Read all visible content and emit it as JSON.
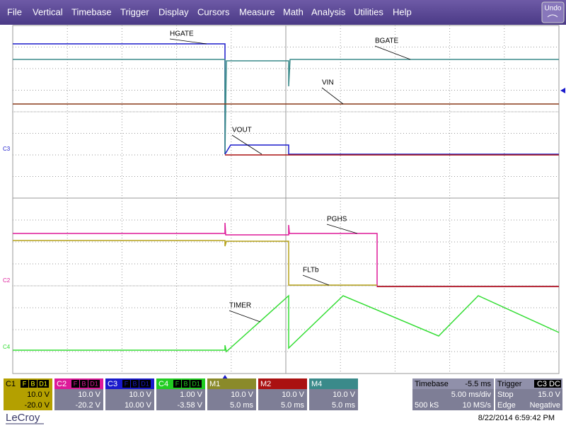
{
  "menu": {
    "items": [
      "File",
      "Vertical",
      "Timebase",
      "Trigger",
      "Display",
      "Cursors",
      "Measure",
      "Math",
      "Analysis",
      "Utilities",
      "Help"
    ],
    "undo": "Undo"
  },
  "traces": {
    "labels": [
      "HGATE",
      "BGATE",
      "VIN",
      "VOUT",
      "PGHS",
      "FLTb",
      "TIMER"
    ],
    "markers": [
      "C3",
      "C2",
      "C4"
    ]
  },
  "channels": [
    {
      "name": "C1",
      "badges": [
        "F",
        "B",
        "D1"
      ],
      "scale": "10.0 V",
      "offset": "-20.0 V"
    },
    {
      "name": "C2",
      "badges": [
        "F",
        "B",
        "D1"
      ],
      "scale": "10.0 V",
      "offset": "-20.2 V"
    },
    {
      "name": "C3",
      "badges": [
        "F",
        "B",
        "D1"
      ],
      "scale": "10.0 V",
      "offset": "10.00 V"
    },
    {
      "name": "C4",
      "badges": [
        "F",
        "B",
        "D1"
      ],
      "scale": "1.00 V",
      "offset": "-3.58 V"
    },
    {
      "name": "M1",
      "badges": [],
      "scale": "10.0 V",
      "offset": "5.0 ms"
    },
    {
      "name": "M2",
      "badges": [],
      "scale": "10.0 V",
      "offset": "5.0 ms"
    },
    {
      "name": "M4",
      "badges": [],
      "scale": "10.0 V",
      "offset": "5.0 ms"
    }
  ],
  "timebase": {
    "title": "Timebase",
    "delay": "-5.5 ms",
    "per_div": "5.00 ms/div",
    "samples": "500 kS",
    "rate": "10 MS/s"
  },
  "trigger": {
    "title": "Trigger",
    "source": "C3",
    "coupling": "DC",
    "mode": "Stop",
    "level": "15.0 V",
    "type": "Edge",
    "slope": "Negative"
  },
  "footer": {
    "brand": "LeCroy",
    "timestamp": "8/22/2014 6:59:42 PM"
  }
}
